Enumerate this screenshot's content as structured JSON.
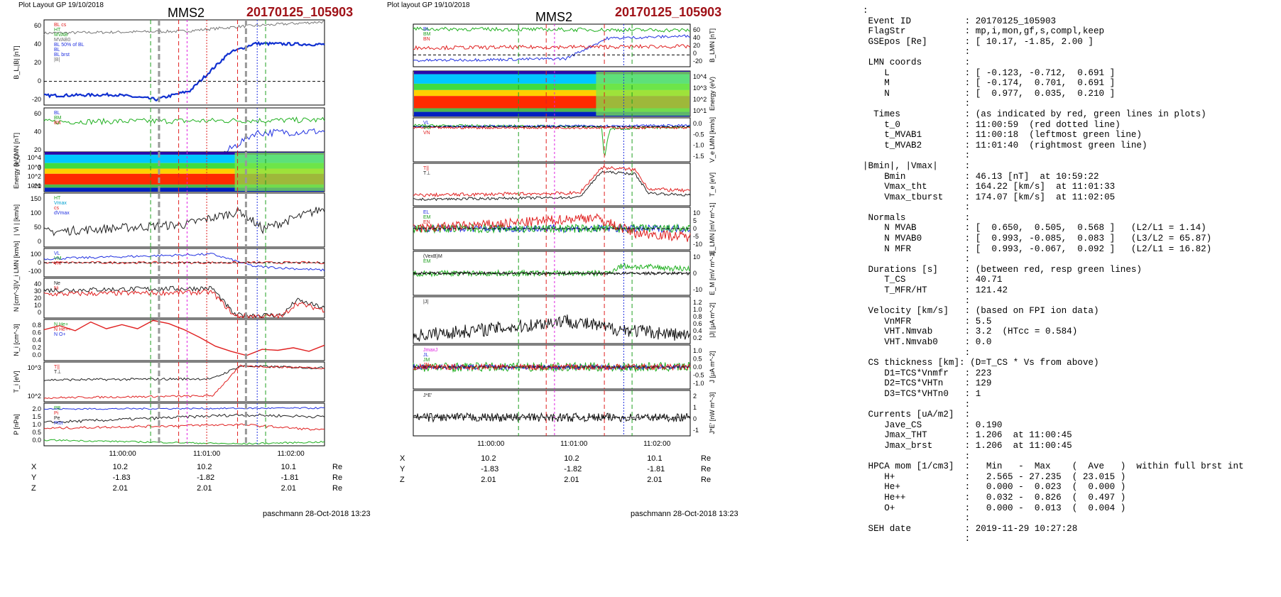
{
  "left_panel": {
    "header": "Plot Layout GP 19/10/2018",
    "spacecraft": "MMS2",
    "event_id": "20170125_105903",
    "footer": "paschmann 28-Oct-2018 13:23",
    "time_ticks": [
      "11:00:00",
      "11:01:00",
      "11:02:00"
    ],
    "coord_rows": [
      {
        "label": "X",
        "values": [
          "10.2",
          "10.2",
          "10.1"
        ],
        "unit": "Re"
      },
      {
        "label": "Y",
        "values": [
          "-1.83",
          "-1.82",
          "-1.81"
        ],
        "unit": "Re"
      },
      {
        "label": "Z",
        "values": [
          "2.01",
          "2.01",
          "2.01"
        ],
        "unit": "Re"
      }
    ]
  },
  "middle_panel": {
    "header": "Plot layout GP 19/10/2018",
    "spacecraft": "MMS2",
    "event_id": "20170125_105903",
    "footer": "paschmann 28-Oct-2018 13:23",
    "time_ticks": [
      "11:00:00",
      "11:01:00",
      "11:02:00"
    ],
    "coord_rows": [
      {
        "label": "X",
        "values": [
          "10.2",
          "10.2",
          "10.1"
        ],
        "unit": "Re"
      },
      {
        "label": "Y",
        "values": [
          "-1.83",
          "-1.82",
          "-1.81"
        ],
        "unit": "Re"
      },
      {
        "label": "Z",
        "values": [
          "2.01",
          "2.01",
          "2.01"
        ],
        "unit": "Re"
      }
    ]
  },
  "info_lines": [
    ":",
    " Event ID          : 20170125_105903",
    " FlagStr           : mp,i,mon,gf,s,compl,keep",
    " GSEpos [Re]       : [ 10.17, -1.85, 2.00 ]",
    "                   :",
    " LMN coords        :",
    "    L              : [ -0.123, -0.712,  0.691 ]",
    "    M              : [ -0.174,  0.701,  0.691 ]",
    "    N              : [  0.977,  0.035,  0.210 ]",
    "                   :",
    "  Times            : (as indicated by red, green lines in plots)",
    "    t_0            : 11:00:59  (red dotted line)",
    "    t_MVAB1        : 11:00:18  (leftmost green line)",
    "    t_MVAB2        : 11:01:40  (rightmost green line)",
    "                   :",
    "|Bmin|, |Vmax|     :",
    "    Bmin           : 46.13 [nT]  at 10:59:22",
    "    Vmax_tht       : 164.22 [km/s]  at 11:01:33",
    "    Vmax_tburst    : 174.07 [km/s]  at 11:02:05",
    "                   :",
    " Normals           :",
    "    N MVAB         : [  0.650,  0.505,  0.568 ]   (L2/L1 = 1.14)",
    "    N MVAB0        : [  0.993, -0.085,  0.083 ]   (L3/L2 = 65.87)",
    "    N MFR          : [  0.993, -0.067,  0.092 ]   (L2/L1 = 16.82)",
    "                   :",
    " Durations [s]     : (between red, resp green lines)",
    "    T_CS           : 40.71",
    "    T_MFR/HT       : 121.42",
    "                   :",
    " Velocity [km/s]   : (based on FPI ion data)",
    "    VnMFR          : 5.5",
    "    VHT.Nmvab      : 3.2  (HTcc = 0.584)",
    "    VHT.Nmvab0     : 0.0",
    "                   :",
    " CS thickness [km]: (D=T_CS * Vs from above)",
    "    D1=TCS*Vnmfr   : 223",
    "    D2=TCS*VHTn    : 129",
    "    D3=TCS*VHTn0   : 1",
    "                   :",
    " Currents [uA/m2]  :",
    "    Jave_CS        : 0.190",
    "    Jmax_THT       : 1.206  at 11:00:45",
    "    Jmax_brst      : 1.206  at 11:00:45",
    "                   :",
    " HPCA mom [1/cm3]  :   Min   -  Max    (  Ave   )  within full brst int",
    "    H+             :   2.565 - 27.235  ( 23.015 )",
    "    He+            :   0.000 -  0.023  (  0.000 )",
    "    He++           :   0.032 -  0.826  (  0.497 )",
    "    O+             :   0.000 -  0.013  (  0.004 )",
    "                   :",
    " SEH date          : 2019-11-29 10:27:28",
    "                   :"
  ],
  "chart_data": [
    {
      "type": "line",
      "panel": "left",
      "ylabel": "B_L,|B| [nT]",
      "ylim": [
        -25,
        65
      ],
      "ticks": [
        "60",
        "40",
        "20",
        "0",
        "-20"
      ],
      "legend": [
        "BL cs",
        "HT",
        "MVAB",
        "MVAB0",
        "BL 50% of BL",
        "BL",
        "BL brst",
        "|B|"
      ],
      "series": [
        {
          "name": "BL",
          "values": [
            -15,
            -16,
            -14,
            -18,
            -16,
            -20,
            -14,
            -10,
            15,
            30,
            40,
            40,
            39
          ]
        },
        {
          "name": "|B|",
          "values": [
            52,
            54,
            55,
            57,
            55,
            54,
            56,
            58,
            57,
            60,
            61,
            63,
            63
          ]
        }
      ]
    },
    {
      "type": "line",
      "panel": "left",
      "ylabel": "B_LMN [nT]",
      "ylim": [
        -25,
        65
      ],
      "ticks": [
        "60",
        "40",
        "20",
        "0",
        "-20"
      ],
      "legend": [
        "BL",
        "BM",
        "BN"
      ]
    },
    {
      "type": "heatmap",
      "panel": "left",
      "ylabel": "Energy (eV)",
      "ticks": [
        "10^4",
        "10^3",
        "10^2",
        "10^1"
      ]
    },
    {
      "type": "line",
      "panel": "left",
      "ylabel": "| Vi | [km/s]",
      "ylim": [
        0,
        180
      ],
      "ticks": [
        "150",
        "100",
        "50",
        "0"
      ],
      "legend": [
        "HT",
        "Vmax",
        "cs",
        "dVmax"
      ]
    },
    {
      "type": "line",
      "panel": "left",
      "ylabel": "V_i LMN [km/s]",
      "ylim": [
        -150,
        150
      ],
      "ticks": [
        "100",
        "0",
        "-100"
      ],
      "legend": [
        "VL",
        "VM",
        "VN"
      ]
    },
    {
      "type": "line",
      "panel": "left",
      "ylabel": "N [cm^-3]",
      "ylim": [
        0,
        40
      ],
      "ticks": [
        "40",
        "30",
        "20",
        "10",
        "0"
      ],
      "legend": [
        "Ne",
        "Ni"
      ]
    },
    {
      "type": "line",
      "panel": "left",
      "ylabel": "N_i [cm^-3]",
      "ylim": [
        0,
        0.8
      ],
      "ticks": [
        "0.8",
        "0.6",
        "0.4",
        "0.2",
        "0.0"
      ],
      "legend": [
        "N He+",
        "N He++",
        "N O+"
      ],
      "series": [
        {
          "name": "N He++",
          "values": [
            0.6,
            0.68,
            0.58,
            0.75,
            0.62,
            0.7,
            0.62,
            0.78,
            0.72,
            0.6,
            0.45,
            0.28,
            0.18,
            0.1,
            0.22,
            0.2,
            0.25,
            0.18,
            0.3
          ]
        }
      ]
    },
    {
      "type": "line",
      "panel": "left",
      "ylabel": "T_i [eV]",
      "ticks": [
        "10^3",
        "10^2"
      ],
      "legend": [
        "T||",
        "T⊥"
      ]
    },
    {
      "type": "line",
      "panel": "left",
      "ylabel": "P [nPa]",
      "ylim": [
        0,
        2.2
      ],
      "ticks": [
        "2.0",
        "1.5",
        "1.0",
        "0.5",
        "0.0"
      ],
      "legend": [
        "PB",
        "Pi",
        "Pe",
        "Ptot"
      ]
    },
    {
      "type": "line",
      "panel": "middle",
      "ylabel": "B_LMN [nT]",
      "ylim": [
        -25,
        65
      ],
      "ticks": [
        "60",
        "40",
        "20",
        "0",
        "-20"
      ],
      "legend": [
        "BL",
        "BM",
        "BN"
      ]
    },
    {
      "type": "heatmap",
      "panel": "middle",
      "ylabel": "Energy (eV)",
      "ticks": [
        "10^4",
        "10^3",
        "10^2",
        "10^1"
      ]
    },
    {
      "type": "line",
      "panel": "middle",
      "ylabel": "V_e LMN [km/s]",
      "ylim": [
        -1.6,
        0.4
      ],
      "ticks": [
        "0.0",
        "-0.5",
        "-1.0",
        "-1.5"
      ],
      "legend": [
        "VL",
        "VM",
        "VN"
      ]
    },
    {
      "type": "line",
      "panel": "middle",
      "ylabel": "T_e [eV]",
      "legend": [
        "T||",
        "T⊥"
      ]
    },
    {
      "type": "line",
      "panel": "middle",
      "ylabel": "E_LMN [mV m^-1]",
      "ylim": [
        -15,
        15
      ],
      "ticks": [
        "10",
        "5",
        "0",
        "-5",
        "-10"
      ],
      "legend": [
        "EL",
        "EM",
        "EN"
      ]
    },
    {
      "type": "line",
      "panel": "middle",
      "ylabel": "E_M [mV m^-1]",
      "ylim": [
        -15,
        15
      ],
      "ticks": [
        "10",
        "0",
        "-10"
      ],
      "legend": [
        "(VexB)M",
        "EM"
      ]
    },
    {
      "type": "line",
      "panel": "middle",
      "ylabel": "|J| [μA m^-2]",
      "ylim": [
        0,
        1.2
      ],
      "ticks": [
        "1.2",
        "1.0",
        "0.8",
        "0.6",
        "0.4",
        "0.2"
      ],
      "legend": [
        "|J|"
      ]
    },
    {
      "type": "line",
      "panel": "middle",
      "ylabel": "J [μA m^-2]",
      "ylim": [
        -1.2,
        1.2
      ],
      "ticks": [
        "1.0",
        "0.5",
        "0.0",
        "-0.5",
        "-1.0"
      ],
      "legend": [
        "JmaxJ",
        "JL",
        "JM",
        "JN"
      ]
    },
    {
      "type": "line",
      "panel": "middle",
      "ylabel": "J*E' [nW m^-3]",
      "ylim": [
        -1.5,
        2.2
      ],
      "ticks": [
        "2",
        "1",
        "0",
        "-1"
      ],
      "legend": [
        "J*E'"
      ]
    }
  ]
}
